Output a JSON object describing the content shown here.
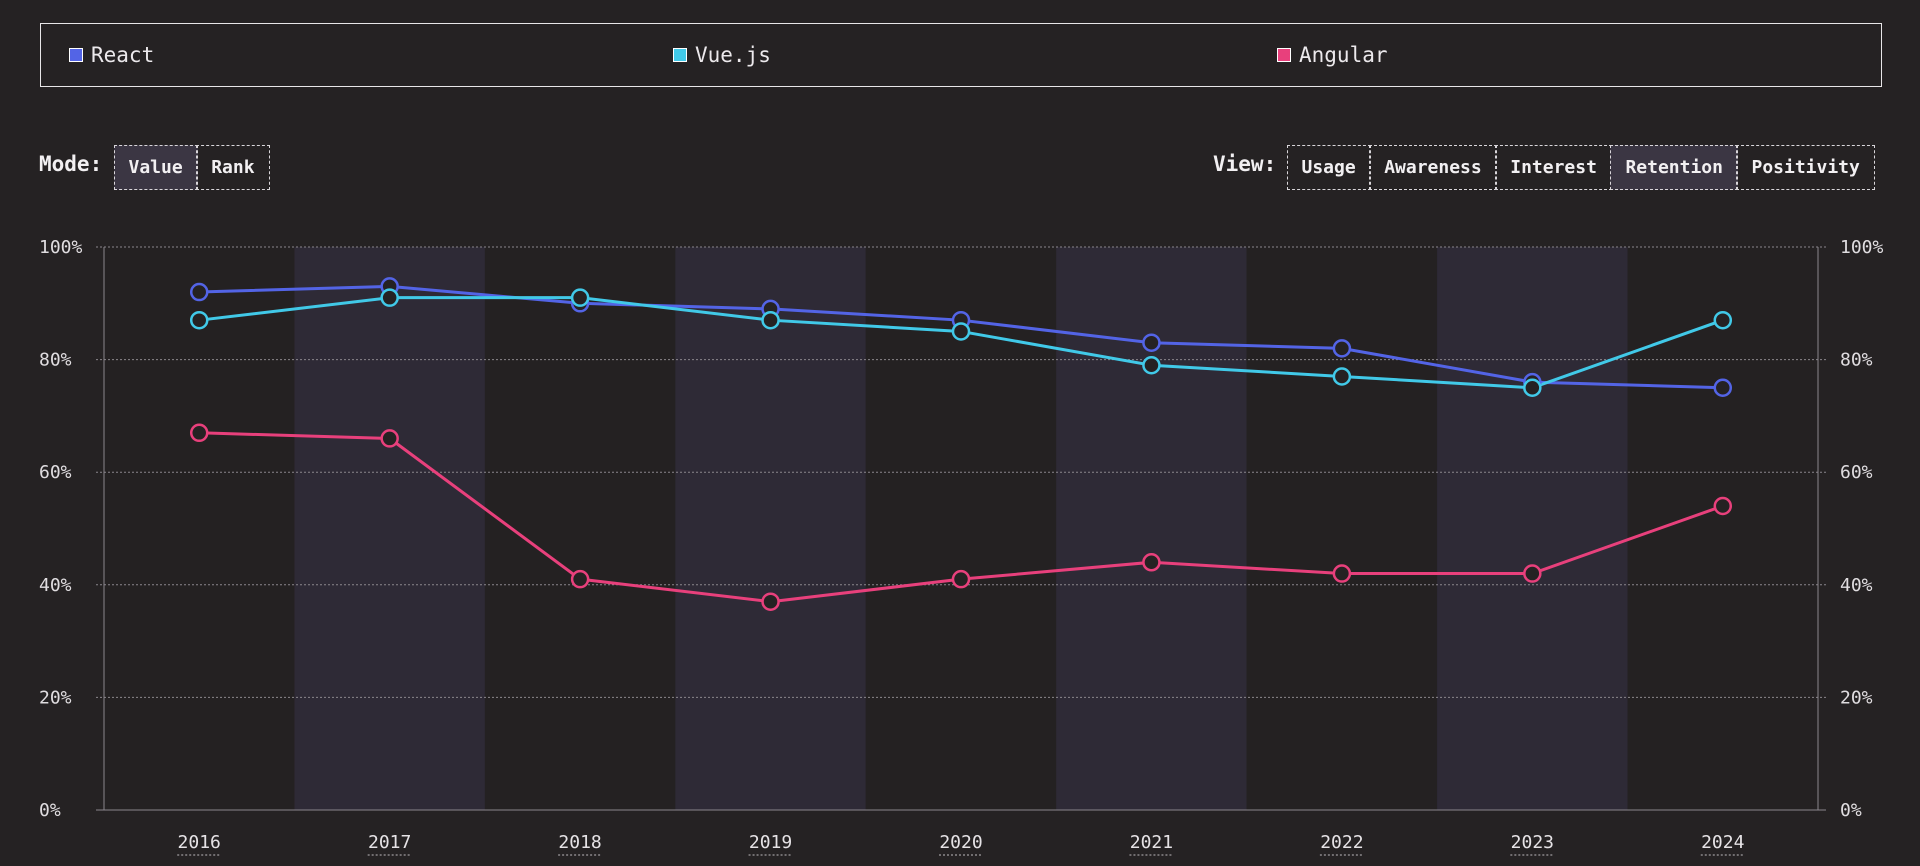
{
  "legend": {
    "items": [
      {
        "label": "React",
        "color": "#5364e6"
      },
      {
        "label": "Vue.js",
        "color": "#41c9e8"
      },
      {
        "label": "Angular",
        "color": "#e8407c"
      }
    ]
  },
  "controls": {
    "mode_label": "Mode:",
    "mode_options": [
      {
        "label": "Value",
        "active": true
      },
      {
        "label": "Rank",
        "active": false
      }
    ],
    "view_label": "View:",
    "view_options": [
      {
        "label": "Usage",
        "active": false
      },
      {
        "label": "Awareness",
        "active": false
      },
      {
        "label": "Interest",
        "active": false
      },
      {
        "label": "Retention",
        "active": true
      },
      {
        "label": "Positivity",
        "active": false
      }
    ]
  },
  "chart_data": {
    "type": "line",
    "x": [
      "2016",
      "2017",
      "2018",
      "2019",
      "2020",
      "2021",
      "2022",
      "2023",
      "2024"
    ],
    "ylim": [
      0,
      100
    ],
    "y_ticks": [
      "0%",
      "20%",
      "40%",
      "60%",
      "80%",
      "100%"
    ],
    "y_tick_values": [
      0,
      20,
      40,
      60,
      80,
      100
    ],
    "grid": true,
    "legend_position": "top",
    "series": [
      {
        "name": "React",
        "color": "#5364e6",
        "values": [
          92,
          93,
          90,
          89,
          87,
          83,
          82,
          76,
          75
        ]
      },
      {
        "name": "Vue.js",
        "color": "#41c9e8",
        "values": [
          87,
          91,
          91,
          87,
          85,
          79,
          77,
          75,
          87
        ]
      },
      {
        "name": "Angular",
        "color": "#e8407c",
        "values": [
          67,
          66,
          41,
          37,
          41,
          44,
          42,
          42,
          54
        ]
      }
    ]
  }
}
